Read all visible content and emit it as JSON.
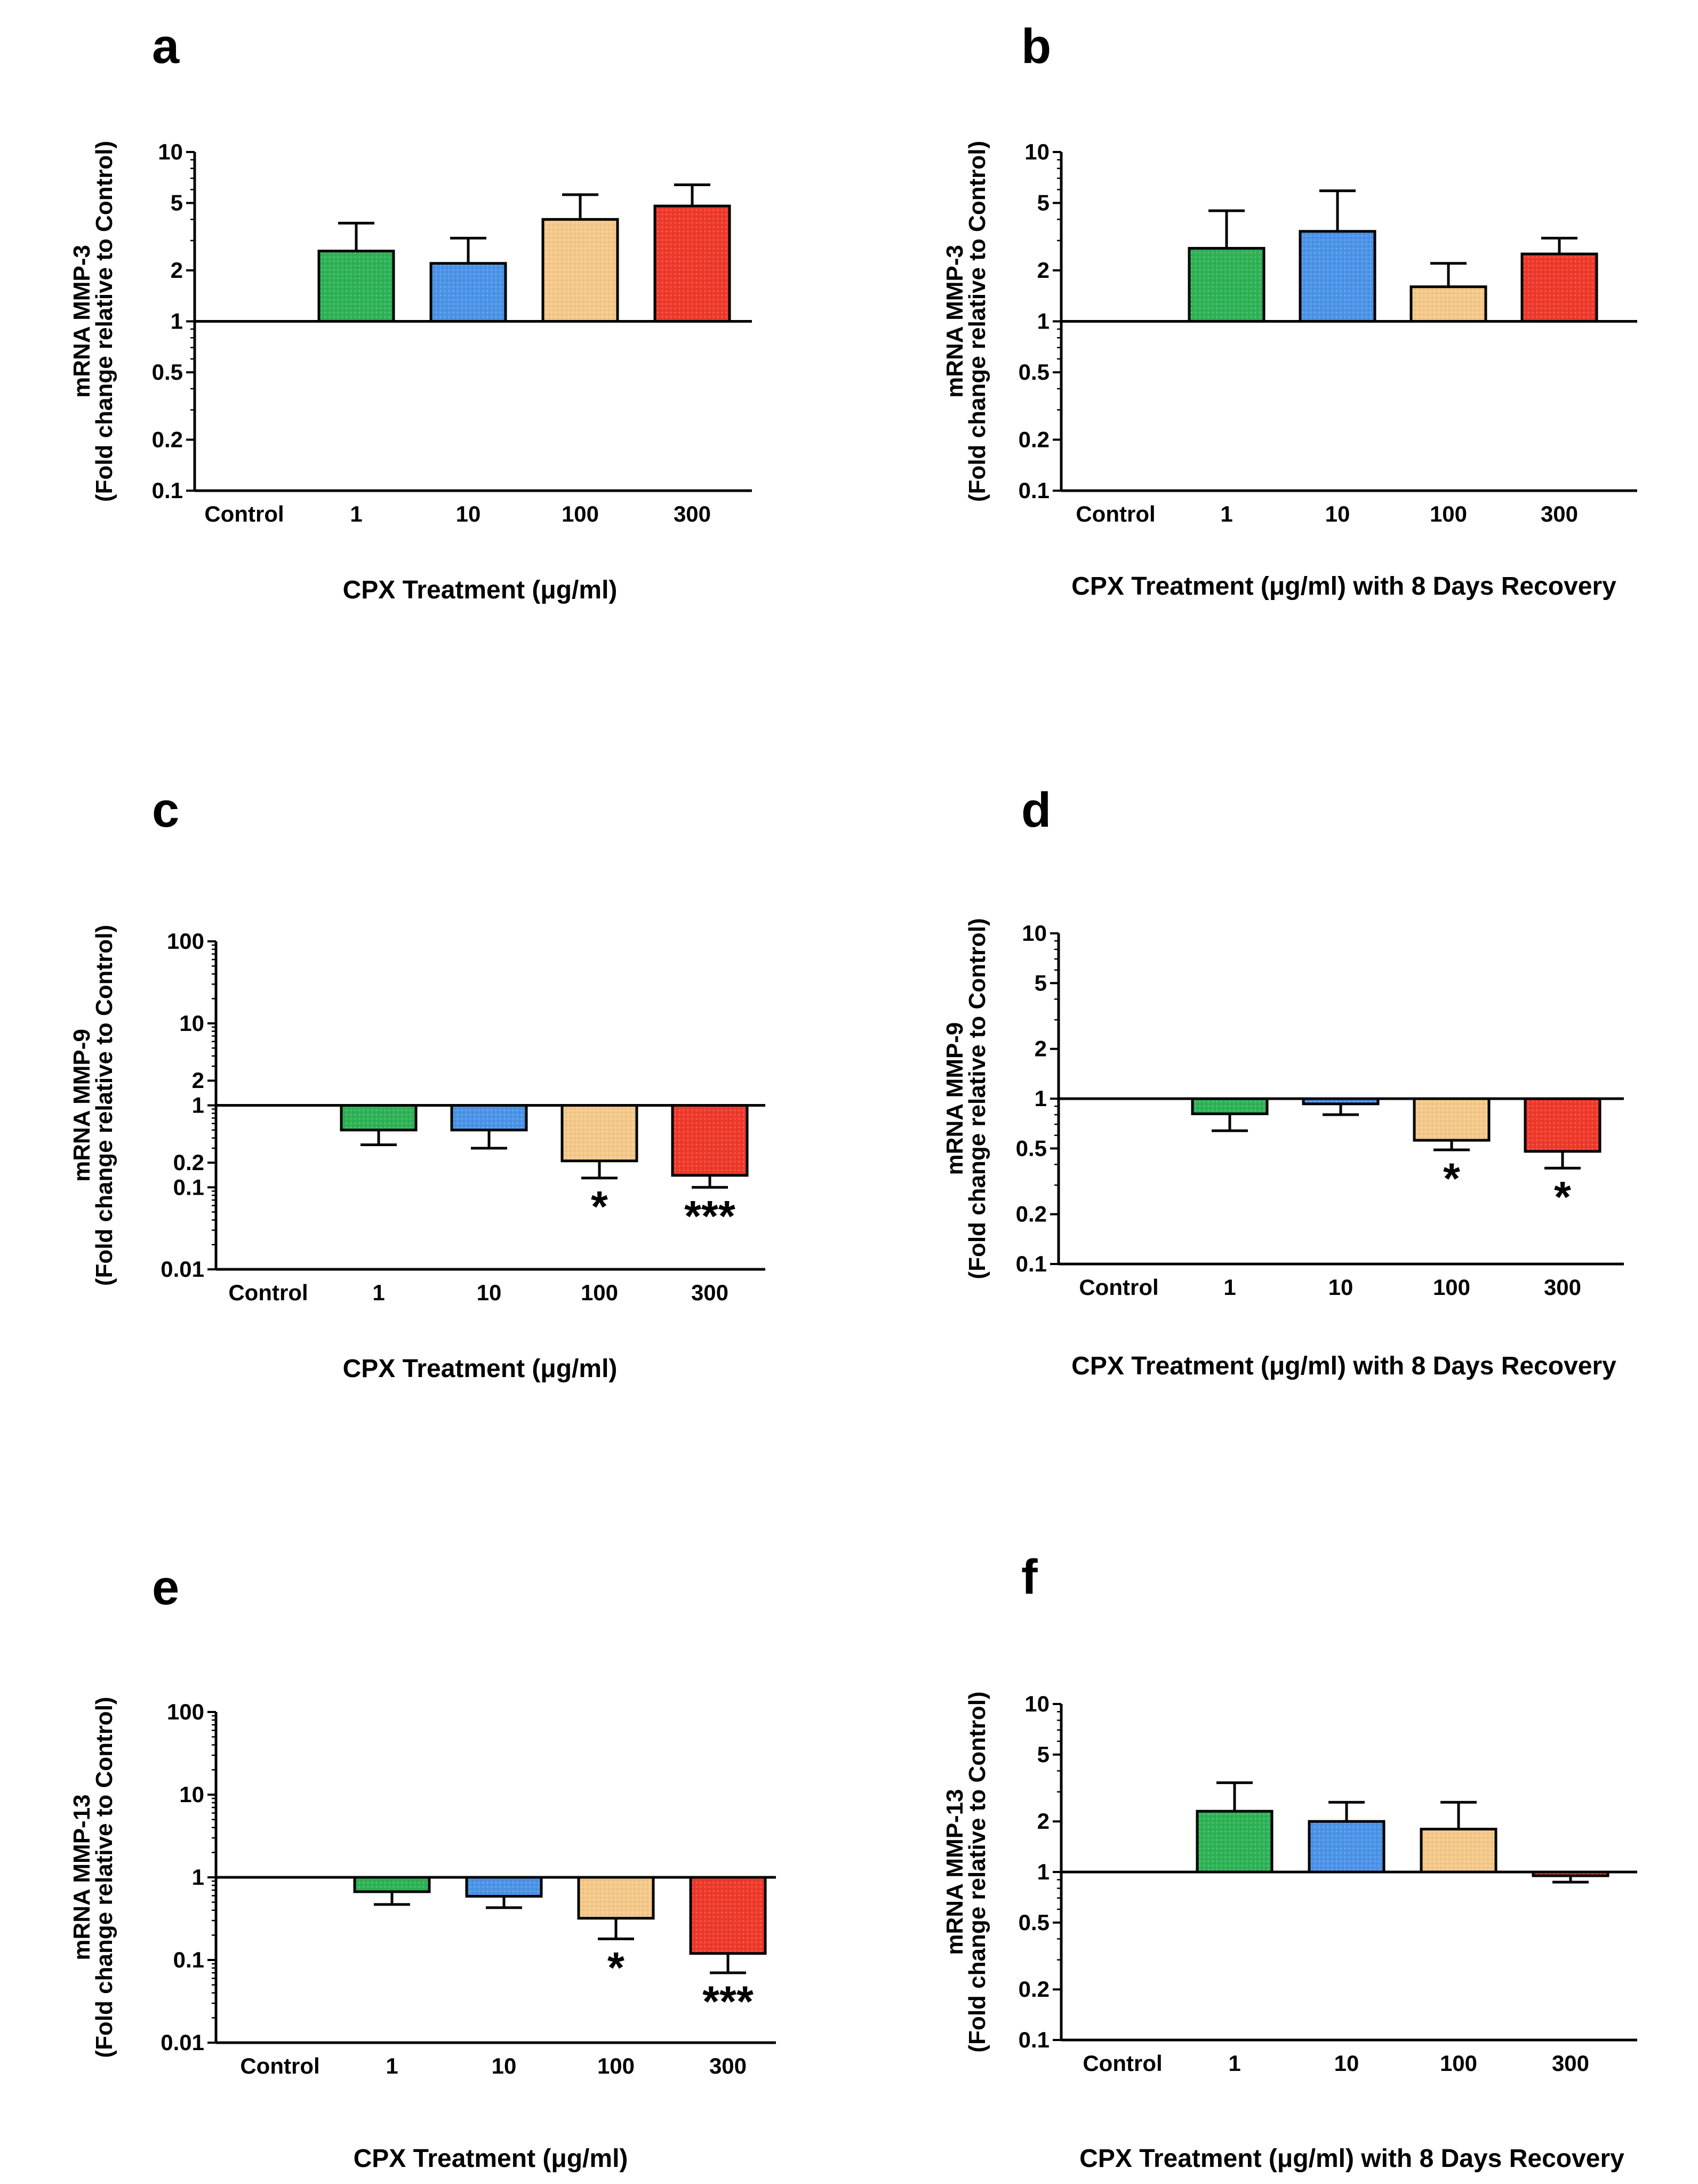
{
  "colors": {
    "control": "#ffffff",
    "dose_1": "#2fb357",
    "dose_10": "#4c94e8",
    "dose_100": "#f5c98a",
    "dose_300": "#ef3a2c",
    "axis": "#000000"
  },
  "chart_data": [
    {
      "panel": "a",
      "type": "bar",
      "scale": "log",
      "title": "",
      "ylabel": "mRNA MMP-3",
      "ylabel2": "(Fold change relative to Control)",
      "xlabel": "CPX Treatment (μg/ml)",
      "categories": [
        "Control",
        "1",
        "10",
        "100",
        "300"
      ],
      "values": [
        1,
        2.6,
        2.2,
        4.0,
        4.8
      ],
      "errors": [
        null,
        3.8,
        3.1,
        5.6,
        6.4
      ],
      "significance": [
        "",
        "",
        "",
        "",
        ""
      ],
      "ylim": [
        0.1,
        10
      ],
      "yticks": [
        0.1,
        0.2,
        0.5,
        1,
        2,
        5,
        10
      ],
      "ytick_labels": [
        "0.1",
        "0.2",
        "0.5",
        "1",
        "2",
        "5",
        "10"
      ]
    },
    {
      "panel": "b",
      "type": "bar",
      "scale": "log",
      "title": "",
      "ylabel": "mRNA MMP-3",
      "ylabel2": "(Fold change relative to Control)",
      "xlabel": "CPX Treatment (μg/ml) with 8 Days Recovery",
      "categories": [
        "Control",
        "1",
        "10",
        "100",
        "300"
      ],
      "values": [
        1,
        2.7,
        3.4,
        1.6,
        2.5
      ],
      "errors": [
        null,
        4.5,
        5.9,
        2.2,
        3.1
      ],
      "significance": [
        "",
        "",
        "",
        "",
        ""
      ],
      "ylim": [
        0.1,
        10
      ],
      "yticks": [
        0.1,
        0.2,
        0.5,
        1,
        2,
        5,
        10
      ],
      "ytick_labels": [
        "0.1",
        "0.2",
        "0.5",
        "1",
        "2",
        "5",
        "10"
      ]
    },
    {
      "panel": "c",
      "type": "bar",
      "scale": "log",
      "title": "",
      "ylabel": "mRNA MMP-9",
      "ylabel2": "(Fold change relative to Control)",
      "xlabel": "CPX Treatment (μg/ml)",
      "categories": [
        "Control",
        "1",
        "10",
        "100",
        "300"
      ],
      "values": [
        1,
        0.5,
        0.5,
        0.21,
        0.14
      ],
      "errors": [
        null,
        0.33,
        0.3,
        0.13,
        0.1
      ],
      "significance": [
        "",
        "",
        "",
        "*",
        "***"
      ],
      "ylim": [
        0.01,
        100
      ],
      "yticks": [
        0.01,
        0.1,
        0.2,
        1,
        2,
        10,
        100
      ],
      "ytick_labels": [
        "0.01",
        "0.1",
        "0.2",
        "1",
        "2",
        "10",
        "100"
      ]
    },
    {
      "panel": "d",
      "type": "bar",
      "scale": "log",
      "title": "",
      "ylabel": "mRNA MMP-9",
      "ylabel2": "(Fold change relative to Control)",
      "xlabel": "CPX Treatment (μg/ml) with 8 Days Recovery",
      "categories": [
        "Control",
        "1",
        "10",
        "100",
        "300"
      ],
      "values": [
        1,
        0.81,
        0.93,
        0.56,
        0.48
      ],
      "errors": [
        null,
        0.64,
        0.8,
        0.49,
        0.38
      ],
      "significance": [
        "",
        "",
        "",
        "*",
        "*"
      ],
      "ylim": [
        0.1,
        10
      ],
      "yticks": [
        0.1,
        0.2,
        0.5,
        1,
        2,
        5,
        10
      ],
      "ytick_labels": [
        "0.1",
        "0.2",
        "0.5",
        "1",
        "2",
        "5",
        "10"
      ]
    },
    {
      "panel": "e",
      "type": "bar",
      "scale": "log",
      "title": "",
      "ylabel": "mRNA MMP-13",
      "ylabel2": "(Fold change relative to Control)",
      "xlabel": "CPX Treatment (μg/ml)",
      "categories": [
        "Control",
        "1",
        "10",
        "100",
        "300"
      ],
      "values": [
        1,
        0.67,
        0.59,
        0.32,
        0.12
      ],
      "errors": [
        null,
        0.47,
        0.43,
        0.18,
        0.07
      ],
      "significance": [
        "",
        "",
        "",
        "*",
        "***"
      ],
      "ylim": [
        0.01,
        100
      ],
      "yticks": [
        0.01,
        0.1,
        1,
        10,
        100
      ],
      "ytick_labels": [
        "0.01",
        "0.1",
        "1",
        "10",
        "100"
      ]
    },
    {
      "panel": "f",
      "type": "bar",
      "scale": "log",
      "title": "",
      "ylabel": "mRNA MMP-13",
      "ylabel2": "(Fold change relative to Control)",
      "xlabel": "CPX Treatment (μg/ml) with 8 Days Recovery",
      "categories": [
        "Control",
        "1",
        "10",
        "100",
        "300"
      ],
      "values": [
        1,
        2.3,
        2.0,
        1.8,
        0.95
      ],
      "errors": [
        null,
        3.4,
        2.6,
        2.6,
        0.87
      ],
      "significance": [
        "",
        "",
        "",
        "",
        ""
      ],
      "ylim": [
        0.1,
        10
      ],
      "yticks": [
        0.1,
        0.2,
        0.5,
        1,
        2,
        5,
        10
      ],
      "ytick_labels": [
        "0.1",
        "0.2",
        "0.5",
        "1",
        "2",
        "5",
        "10"
      ]
    }
  ]
}
